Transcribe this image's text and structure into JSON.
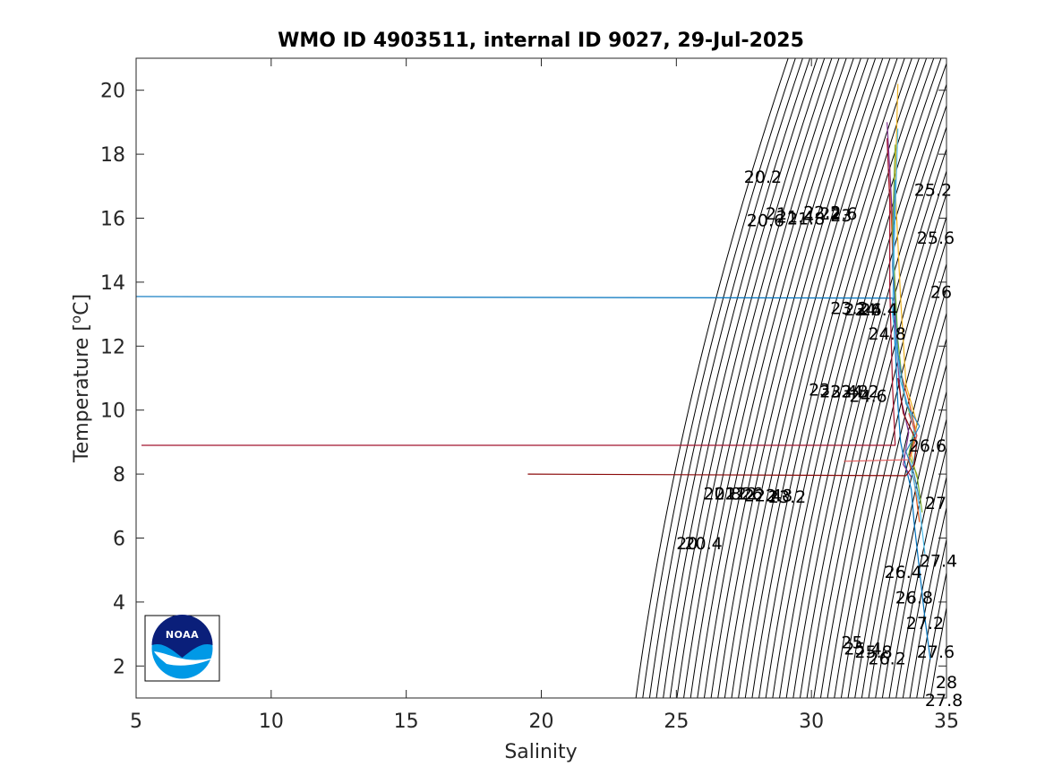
{
  "chart_data": {
    "type": "line",
    "title": "WMO ID 4903511, internal ID 9027, 29-Jul-2025",
    "xlabel": "Salinity",
    "ylabel_base": "Temperature [",
    "ylabel_sup": "o",
    "ylabel_tail": "C]",
    "xlim": [
      5,
      35
    ],
    "ylim": [
      1,
      21
    ],
    "xticks": [
      5,
      10,
      15,
      20,
      25,
      30,
      35
    ],
    "yticks": [
      2,
      4,
      6,
      8,
      10,
      12,
      14,
      16,
      18,
      20
    ],
    "density_contours": {
      "color": "#000000",
      "sigma_min": 18.6,
      "sigma_step": 0.2,
      "count": 44
    },
    "contour_labels": [
      {
        "text": "20.2",
        "s": 27.5,
        "t": 17.3
      },
      {
        "text": "20.6",
        "s": 27.6,
        "t": 15.95
      },
      {
        "text": "21",
        "s": 28.3,
        "t": 16.15
      },
      {
        "text": "21.4",
        "s": 28.7,
        "t": 16.05
      },
      {
        "text": "21.8",
        "s": 29.1,
        "t": 16.0
      },
      {
        "text": "22.2",
        "s": 29.7,
        "t": 16.2
      },
      {
        "text": "22.6",
        "s": 30.3,
        "t": 16.15
      },
      {
        "text": "23",
        "s": 30.7,
        "t": 16.1
      },
      {
        "text": "25.2",
        "s": 33.8,
        "t": 16.9
      },
      {
        "text": "25.6",
        "s": 33.9,
        "t": 15.4
      },
      {
        "text": "26",
        "s": 34.4,
        "t": 13.7
      },
      {
        "text": "23.2",
        "s": 30.7,
        "t": 13.2
      },
      {
        "text": "23.6",
        "s": 31.2,
        "t": 13.15
      },
      {
        "text": "24",
        "s": 31.6,
        "t": 13.15
      },
      {
        "text": "24.4",
        "s": 31.8,
        "t": 13.15
      },
      {
        "text": "24.8",
        "s": 32.1,
        "t": 12.4
      },
      {
        "text": "23",
        "s": 29.9,
        "t": 10.65
      },
      {
        "text": "23.4",
        "s": 30.3,
        "t": 10.6
      },
      {
        "text": "23.8",
        "s": 30.7,
        "t": 10.6
      },
      {
        "text": "24.2",
        "s": 31.1,
        "t": 10.6
      },
      {
        "text": "24.6",
        "s": 31.4,
        "t": 10.45
      },
      {
        "text": "26.6",
        "s": 33.6,
        "t": 8.9
      },
      {
        "text": "20.8",
        "s": 26.0,
        "t": 7.4
      },
      {
        "text": "21.2",
        "s": 26.4,
        "t": 7.4
      },
      {
        "text": "21.6",
        "s": 26.8,
        "t": 7.4
      },
      {
        "text": "22",
        "s": 27.2,
        "t": 7.4
      },
      {
        "text": "22.4",
        "s": 27.5,
        "t": 7.35
      },
      {
        "text": "22.8",
        "s": 27.9,
        "t": 7.35
      },
      {
        "text": "23.2",
        "s": 28.4,
        "t": 7.3
      },
      {
        "text": "27",
        "s": 34.2,
        "t": 7.1
      },
      {
        "text": "20",
        "s": 25.0,
        "t": 5.85
      },
      {
        "text": "20.4",
        "s": 25.3,
        "t": 5.85
      },
      {
        "text": "27.4",
        "s": 34.0,
        "t": 5.3
      },
      {
        "text": "26.4",
        "s": 32.7,
        "t": 4.95
      },
      {
        "text": "26.8",
        "s": 33.1,
        "t": 4.15
      },
      {
        "text": "27.2",
        "s": 33.5,
        "t": 3.35
      },
      {
        "text": "25",
        "s": 31.1,
        "t": 2.75
      },
      {
        "text": "25.4",
        "s": 31.2,
        "t": 2.55
      },
      {
        "text": "25.8",
        "s": 31.6,
        "t": 2.45
      },
      {
        "text": "26.2",
        "s": 32.1,
        "t": 2.25
      },
      {
        "text": "27.6",
        "s": 33.9,
        "t": 2.45
      },
      {
        "text": "28",
        "s": 34.6,
        "t": 1.5
      },
      {
        "text": "27.8",
        "s": 34.2,
        "t": 0.95
      }
    ],
    "series": [
      {
        "color": "#0072BD",
        "points": [
          [
            5.0,
            13.55
          ],
          [
            33.0,
            13.5
          ],
          [
            33.1,
            12.0
          ],
          [
            33.2,
            10.2
          ],
          [
            33.3,
            9.0
          ],
          [
            33.5,
            8.2
          ],
          [
            33.7,
            7.5
          ],
          [
            33.8,
            6.5
          ],
          [
            34.0,
            5.0
          ],
          [
            34.2,
            3.5
          ],
          [
            34.4,
            2.2
          ]
        ]
      },
      {
        "color": "#D95319",
        "points": [
          [
            32.9,
            17.6
          ],
          [
            33.0,
            15.0
          ],
          [
            33.2,
            11.5
          ],
          [
            33.6,
            10.3
          ],
          [
            33.9,
            9.2
          ],
          [
            33.6,
            8.4
          ],
          [
            33.8,
            7.8
          ],
          [
            34.0,
            6.5
          ]
        ]
      },
      {
        "color": "#EDB120",
        "points": [
          [
            33.2,
            20.2
          ],
          [
            33.1,
            17.0
          ],
          [
            33.3,
            13.5
          ],
          [
            33.5,
            10.8
          ],
          [
            33.9,
            9.6
          ],
          [
            33.7,
            8.6
          ],
          [
            33.9,
            7.9
          ]
        ]
      },
      {
        "color": "#7E2F8E",
        "points": [
          [
            32.8,
            19.0
          ],
          [
            33.0,
            16.0
          ],
          [
            33.1,
            12.5
          ],
          [
            33.3,
            10.4
          ],
          [
            33.6,
            9.3
          ],
          [
            33.4,
            8.3
          ],
          [
            33.7,
            7.9
          ]
        ]
      },
      {
        "color": "#77AC30",
        "points": [
          [
            33.1,
            18.3
          ],
          [
            33.0,
            15.5
          ],
          [
            33.2,
            12.2
          ],
          [
            33.4,
            10.6
          ],
          [
            33.8,
            9.4
          ],
          [
            33.6,
            8.6
          ],
          [
            33.9,
            8.0
          ],
          [
            34.1,
            6.8
          ]
        ]
      },
      {
        "color": "#4DBEEE",
        "points": [
          [
            33.2,
            18.8
          ],
          [
            33.1,
            16.2
          ],
          [
            33.0,
            13.0
          ],
          [
            33.3,
            10.9
          ],
          [
            33.7,
            9.8
          ],
          [
            33.9,
            8.9
          ],
          [
            33.7,
            8.1
          ],
          [
            34.0,
            7.0
          ],
          [
            34.2,
            5.5
          ]
        ]
      },
      {
        "color": "#A2142F",
        "points": [
          [
            5.2,
            8.9
          ],
          [
            33.1,
            8.9
          ],
          [
            33.0,
            10.8
          ],
          [
            32.9,
            13.8
          ],
          [
            32.9,
            16.5
          ],
          [
            32.8,
            18.5
          ]
        ]
      },
      {
        "color": "#8B0A0A",
        "points": [
          [
            19.5,
            8.0
          ],
          [
            33.5,
            7.95
          ],
          [
            33.8,
            8.3
          ],
          [
            33.9,
            9.0
          ],
          [
            33.4,
            9.9
          ],
          [
            33.2,
            11.0
          ]
        ]
      },
      {
        "color": "#E05A5A",
        "points": [
          [
            31.2,
            8.4
          ],
          [
            33.6,
            8.45
          ],
          [
            33.9,
            9.2
          ],
          [
            33.6,
            9.9
          ]
        ]
      },
      {
        "color": "#2E86C1",
        "points": [
          [
            33.1,
            17.2
          ],
          [
            33.0,
            14.5
          ],
          [
            33.2,
            11.8
          ],
          [
            33.5,
            10.2
          ],
          [
            34.0,
            9.5
          ],
          [
            33.5,
            8.7
          ],
          [
            33.8,
            8.0
          ],
          [
            34.0,
            7.2
          ]
        ]
      }
    ]
  }
}
